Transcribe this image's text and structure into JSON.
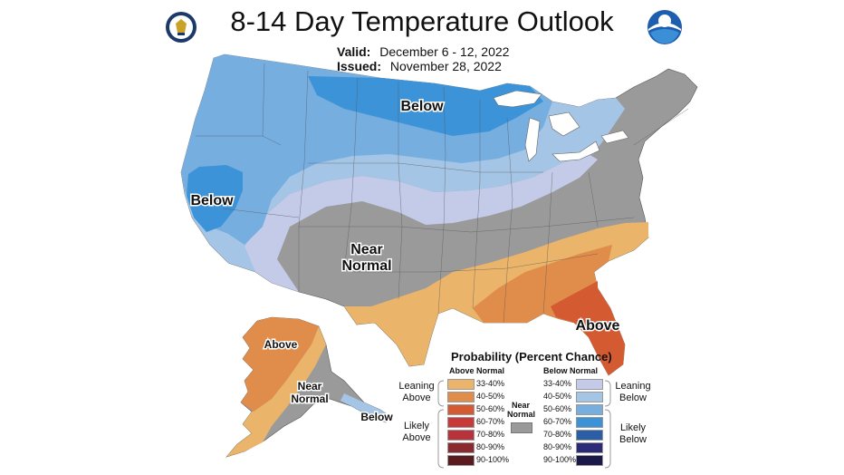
{
  "header": {
    "title": "8-14 Day Temperature Outlook",
    "valid_label": "Valid:",
    "valid_value": "December 6 - 12, 2022",
    "issued_label": "Issued:",
    "issued_value": "November 28, 2022"
  },
  "map": {
    "labels": {
      "below_north": "Below",
      "below_west": "Below",
      "near_normal_1": "Near",
      "near_normal_2": "Normal",
      "above_southeast": "Above",
      "alaska_above": "Above",
      "alaska_near_1": "Near",
      "alaska_near_2": "Normal",
      "alaska_below": "Below"
    },
    "colors": {
      "below_33_40": "#c3cbe8",
      "below_40_50": "#a5c5e6",
      "below_50_60": "#76aee0",
      "below_60_70": "#3d93d8",
      "near_normal": "#9a9a9a",
      "above_33_40": "#eab46a",
      "above_40_50": "#e08c4a",
      "above_50_60": "#d45a32"
    }
  },
  "legend": {
    "title": "Probability (Percent Chance)",
    "above_header": "Above Normal",
    "below_header": "Below Normal",
    "near_label_1": "Near",
    "near_label_2": "Normal",
    "leaning_above_1": "Leaning",
    "leaning_above_2": "Above",
    "likely_above_1": "Likely",
    "likely_above_2": "Above",
    "leaning_below_1": "Leaning",
    "leaning_below_2": "Below",
    "likely_below_1": "Likely",
    "likely_below_2": "Below",
    "above_items": [
      {
        "label": "33-40%",
        "color": "#eab46a"
      },
      {
        "label": "40-50%",
        "color": "#e08c4a"
      },
      {
        "label": "50-60%",
        "color": "#d45a32"
      },
      {
        "label": "60-70%",
        "color": "#c83a3a"
      },
      {
        "label": "70-80%",
        "color": "#b8323c"
      },
      {
        "label": "80-90%",
        "color": "#8a2a2e"
      },
      {
        "label": "90-100%",
        "color": "#5a1a1e"
      }
    ],
    "below_items": [
      {
        "label": "33-40%",
        "color": "#c3cbe8"
      },
      {
        "label": "40-50%",
        "color": "#a5c5e6"
      },
      {
        "label": "50-60%",
        "color": "#76aee0"
      },
      {
        "label": "60-70%",
        "color": "#3d93d8"
      },
      {
        "label": "70-80%",
        "color": "#2a5fa8"
      },
      {
        "label": "80-90%",
        "color": "#2a2a78"
      },
      {
        "label": "90-100%",
        "color": "#1a1a4a"
      }
    ],
    "near_color": "#9a9a9a"
  }
}
